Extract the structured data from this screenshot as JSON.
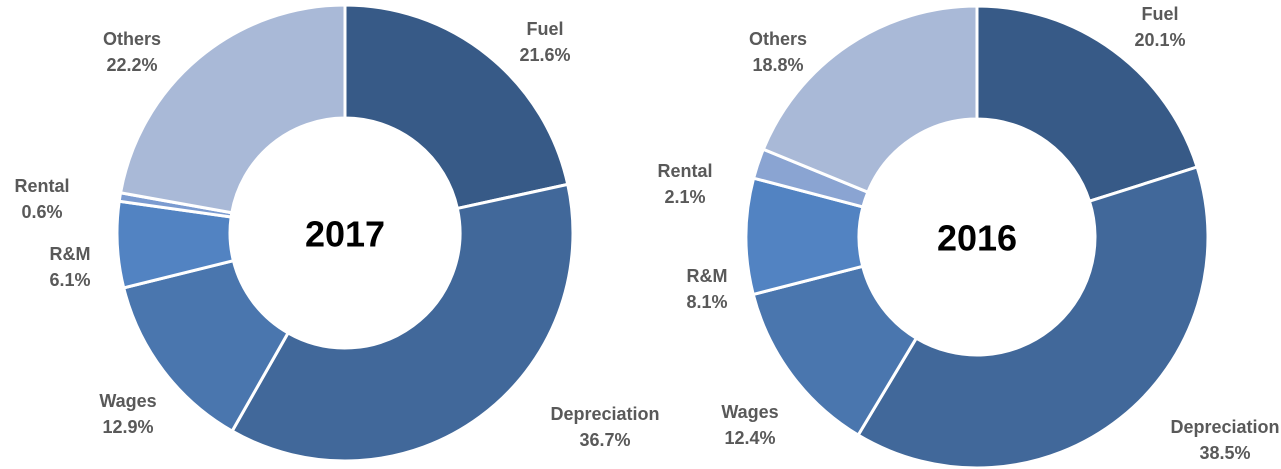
{
  "chart_data": [
    {
      "type": "donut",
      "title": "2017",
      "categories": [
        "Fuel",
        "Depreciation",
        "Wages",
        "R&M",
        "Rental",
        "Others"
      ],
      "values": [
        21.6,
        36.7,
        12.9,
        6.1,
        0.6,
        22.2
      ],
      "value_labels": [
        "21.6%",
        "36.7%",
        "12.9%",
        "6.1%",
        "0.6%",
        "22.2%"
      ],
      "colors": [
        "#375a87",
        "#41689a",
        "#4a76ae",
        "#5283c2",
        "#7b9bd0",
        "#a9b9d7"
      ]
    },
    {
      "type": "donut",
      "title": "2016",
      "categories": [
        "Fuel",
        "Depreciation",
        "Wages",
        "R&M",
        "Rental",
        "Others"
      ],
      "values": [
        20.1,
        38.5,
        12.4,
        8.1,
        2.1,
        18.8
      ],
      "value_labels": [
        "20.1%",
        "38.5%",
        "12.4%",
        "8.1%",
        "2.1%",
        "18.8%"
      ],
      "colors": [
        "#375a87",
        "#41689a",
        "#4a76ae",
        "#5283c2",
        "#8aa4d2",
        "#a9b9d7"
      ]
    }
  ]
}
